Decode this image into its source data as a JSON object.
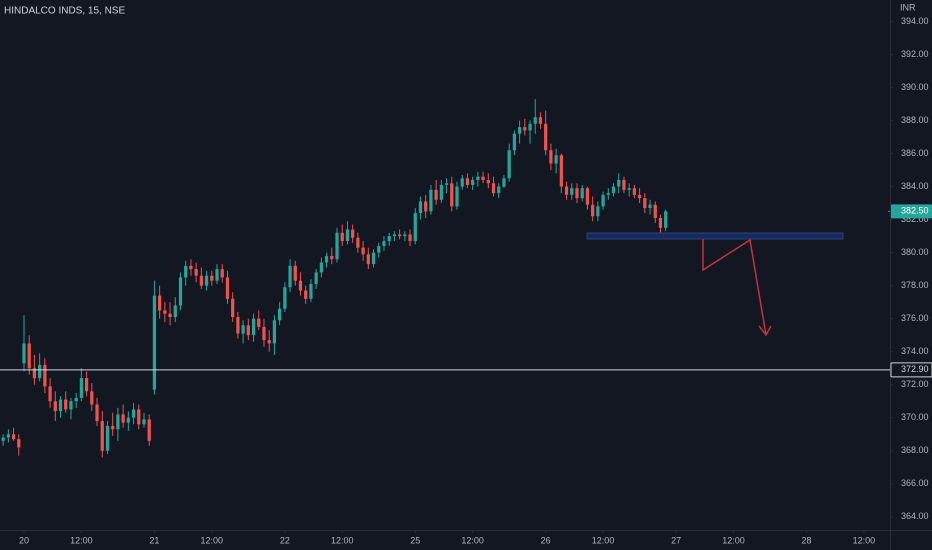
{
  "chart_data": {
    "type": "candlestick",
    "title": "HINDALCO INDS, 15, NSE",
    "currency": "INR",
    "up_color": "#26a69a",
    "down_color": "#ef5350",
    "grid": false,
    "x": [
      -4,
      -3,
      -2,
      -1,
      0,
      1,
      2,
      3,
      4,
      5,
      6,
      7,
      8,
      9,
      10,
      11,
      12,
      13,
      14,
      15,
      16,
      17,
      18,
      19,
      20,
      21,
      22,
      23,
      24,
      25,
      26,
      27,
      28,
      29,
      30,
      31,
      32,
      33,
      34,
      35,
      36,
      37,
      38,
      39,
      40,
      41,
      42,
      43,
      44,
      45,
      46,
      47,
      48,
      49,
      50,
      51,
      52,
      53,
      54,
      55,
      56,
      57,
      58,
      59,
      60,
      61,
      62,
      63,
      64,
      65,
      66,
      67,
      68,
      69,
      70,
      71,
      72,
      73,
      74,
      75,
      76,
      77,
      78,
      79,
      80,
      81,
      82,
      83,
      84,
      85,
      86,
      87,
      88,
      89,
      90,
      91,
      92,
      93,
      94,
      95,
      96,
      97,
      98,
      99,
      100,
      101,
      102,
      103,
      104,
      105,
      106,
      107,
      108,
      109,
      110,
      111,
      112,
      113,
      114,
      115,
      116,
      117,
      118,
      119,
      120,
      121,
      122,
      123
    ],
    "open": [
      368.6,
      368.8,
      369.0,
      368.7,
      373.3,
      374.5,
      373.0,
      372.4,
      373.2,
      371.9,
      371.0,
      370.4,
      371.1,
      370.5,
      371.0,
      371.2,
      372.4,
      371.6,
      370.8,
      369.8,
      368.0,
      369.5,
      369.3,
      370.2,
      369.7,
      370.0,
      370.5,
      369.6,
      369.9,
      371.7,
      377.4,
      376.5,
      376.3,
      376.1,
      376.8,
      378.5,
      379.2,
      379.0,
      378.6,
      378.0,
      378.6,
      378.3,
      379.0,
      378.5,
      377.2,
      376.1,
      375.1,
      375.6,
      375.0,
      376.0,
      375.5,
      374.7,
      374.5,
      375.9,
      376.6,
      377.9,
      379.2,
      378.3,
      377.7,
      377.2,
      378.1,
      378.8,
      379.4,
      379.8,
      379.6,
      381.2,
      380.7,
      381.4,
      380.9,
      380.3,
      379.9,
      379.3,
      380.0,
      380.4,
      380.7,
      381.0,
      381.1,
      381.0,
      381.1,
      380.7,
      382.4,
      383.1,
      382.5,
      383.8,
      383.2,
      384.1,
      384.2,
      382.8,
      384.0,
      384.5,
      384.1,
      384.4,
      384.6,
      384.4,
      384.2,
      383.6,
      384.0,
      384.5,
      386.2,
      387.2,
      387.6,
      387.4,
      387.8,
      388.2,
      387.8,
      386.2,
      385.4,
      385.9,
      384.0,
      383.5,
      383.9,
      383.3,
      383.9,
      382.9,
      382.2,
      382.8,
      383.5,
      383.6,
      384.0,
      384.4,
      383.8,
      383.9,
      383.5,
      383.3,
      382.7,
      382.9,
      382.1,
      381.5
    ],
    "high": [
      369.0,
      369.3,
      369.4,
      369.0,
      376.2,
      375.0,
      373.8,
      373.9,
      373.6,
      372.4,
      371.6,
      371.3,
      371.6,
      371.2,
      371.5,
      373.0,
      372.8,
      372.1,
      371.2,
      370.4,
      369.8,
      370.3,
      370.6,
      370.8,
      370.4,
      370.9,
      370.8,
      370.3,
      370.2,
      378.3,
      378.0,
      377.0,
      377.0,
      377.3,
      378.8,
      379.5,
      379.6,
      379.4,
      379.1,
      378.9,
      378.9,
      379.3,
      379.3,
      378.9,
      377.6,
      376.4,
      375.9,
      376.0,
      376.3,
      376.5,
      376.0,
      375.3,
      376.2,
      377.0,
      378.2,
      379.6,
      379.5,
      378.8,
      378.0,
      378.4,
      379.0,
      379.7,
      380.0,
      380.3,
      381.5,
      381.7,
      381.9,
      381.7,
      381.2,
      380.7,
      380.3,
      380.2,
      380.6,
      381.0,
      381.2,
      381.3,
      381.4,
      381.3,
      381.4,
      382.7,
      383.4,
      383.5,
      384.1,
      384.4,
      384.4,
      384.5,
      384.6,
      384.3,
      384.7,
      384.8,
      384.6,
      384.9,
      384.9,
      384.8,
      384.6,
      384.2,
      384.7,
      386.6,
      387.4,
      388.0,
      388.1,
      388.0,
      389.3,
      388.5,
      388.6,
      386.6,
      386.3,
      386.0,
      384.3,
      384.2,
      384.2,
      384.1,
      384.0,
      383.4,
      383.1,
      383.7,
      383.9,
      384.2,
      384.8,
      384.6,
      384.2,
      384.1,
      383.9,
      383.6,
      383.2,
      383.1,
      382.3,
      382.6
    ],
    "low": [
      368.3,
      368.5,
      368.6,
      367.7,
      372.8,
      372.6,
      372.0,
      372.2,
      371.5,
      370.6,
      369.8,
      370.0,
      370.3,
      369.9,
      370.6,
      371.0,
      371.3,
      370.4,
      369.5,
      367.6,
      367.8,
      368.9,
      368.6,
      369.4,
      369.2,
      369.6,
      369.3,
      369.4,
      368.3,
      371.4,
      376.0,
      375.8,
      375.6,
      375.8,
      376.5,
      378.0,
      378.6,
      378.2,
      377.8,
      377.7,
      378.0,
      378.1,
      378.2,
      376.9,
      375.8,
      374.8,
      374.5,
      374.7,
      374.6,
      375.3,
      374.3,
      374.0,
      373.8,
      375.6,
      376.4,
      377.6,
      378.0,
      377.4,
      376.9,
      377.0,
      377.8,
      378.5,
      379.1,
      379.3,
      379.4,
      380.4,
      380.5,
      380.6,
      380.0,
      379.5,
      379.0,
      379.1,
      379.7,
      380.1,
      380.4,
      380.7,
      380.8,
      380.7,
      380.4,
      380.5,
      382.0,
      382.1,
      382.3,
      382.9,
      383.0,
      383.6,
      382.5,
      382.6,
      383.8,
      383.9,
      383.8,
      384.0,
      384.2,
      383.9,
      383.4,
      383.3,
      383.9,
      384.3,
      385.9,
      386.6,
      387.1,
      386.6,
      387.2,
      387.5,
      385.9,
      385.0,
      384.8,
      383.6,
      383.2,
      383.2,
      383.0,
      383.1,
      382.6,
      381.9,
      381.9,
      382.6,
      383.2,
      383.4,
      383.6,
      383.6,
      383.4,
      383.3,
      383.0,
      382.4,
      382.3,
      381.8,
      381.2,
      381.3
    ],
    "close": [
      368.8,
      369.0,
      368.7,
      368.2,
      374.5,
      373.0,
      372.4,
      373.2,
      371.9,
      371.0,
      370.4,
      371.1,
      370.5,
      371.0,
      371.2,
      372.4,
      371.6,
      370.8,
      369.8,
      368.0,
      369.5,
      369.3,
      370.2,
      369.7,
      370.0,
      370.5,
      369.6,
      369.9,
      368.6,
      377.4,
      376.5,
      376.3,
      376.1,
      376.8,
      378.5,
      379.2,
      379.0,
      378.6,
      378.0,
      378.6,
      378.3,
      379.0,
      378.5,
      377.2,
      376.1,
      375.1,
      375.6,
      375.0,
      376.0,
      375.5,
      374.7,
      374.5,
      375.9,
      376.6,
      377.9,
      379.2,
      378.3,
      377.7,
      377.2,
      378.1,
      378.8,
      379.4,
      379.8,
      379.6,
      381.2,
      380.7,
      381.4,
      380.9,
      380.3,
      379.9,
      379.3,
      380.0,
      380.4,
      380.7,
      381.0,
      381.1,
      381.0,
      381.1,
      380.7,
      382.4,
      383.1,
      382.5,
      383.8,
      383.2,
      384.1,
      384.2,
      382.8,
      384.0,
      384.5,
      384.1,
      384.4,
      384.6,
      384.4,
      384.2,
      383.6,
      384.0,
      384.5,
      386.2,
      387.2,
      387.6,
      387.4,
      387.8,
      388.2,
      387.8,
      386.2,
      385.4,
      385.9,
      384.0,
      383.5,
      383.9,
      383.3,
      383.9,
      382.9,
      382.2,
      382.8,
      383.5,
      383.6,
      384.0,
      384.4,
      383.8,
      383.9,
      383.5,
      383.3,
      382.7,
      382.9,
      382.1,
      381.5,
      382.5
    ],
    "xlim": [
      -4.6,
      166
    ],
    "ylim": [
      363.2,
      395.3
    ],
    "xticks": [
      {
        "value": 0,
        "label": "20"
      },
      {
        "value": 11,
        "label": "12:00"
      },
      {
        "value": 25,
        "label": "21"
      },
      {
        "value": 36,
        "label": "12:00"
      },
      {
        "value": 50,
        "label": "22"
      },
      {
        "value": 61,
        "label": "12:00"
      },
      {
        "value": 75,
        "label": "25"
      },
      {
        "value": 86,
        "label": "12:00"
      },
      {
        "value": 100,
        "label": "26"
      },
      {
        "value": 111,
        "label": "12:00"
      },
      {
        "value": 125,
        "label": "27"
      },
      {
        "value": 136,
        "label": "12:00"
      },
      {
        "value": 150,
        "label": "28"
      },
      {
        "value": 161,
        "label": "12:00"
      }
    ],
    "yticks": [
      {
        "value": 364,
        "label": "364.00"
      },
      {
        "value": 366,
        "label": "366.00"
      },
      {
        "value": 368,
        "label": "368.00"
      },
      {
        "value": 370,
        "label": "370.00"
      },
      {
        "value": 372,
        "label": "372.00"
      },
      {
        "value": 374,
        "label": "374.00"
      },
      {
        "value": 376,
        "label": "376.00"
      },
      {
        "value": 378,
        "label": "378.00"
      },
      {
        "value": 380,
        "label": "380.00"
      },
      {
        "value": 382,
        "label": "382.00"
      },
      {
        "value": 384,
        "label": "384.00"
      },
      {
        "value": 386,
        "label": "386.00"
      },
      {
        "value": 388,
        "label": "388.00"
      },
      {
        "value": 390,
        "label": "390.00"
      },
      {
        "value": 392,
        "label": "392.00"
      },
      {
        "value": 394,
        "label": "394.00"
      }
    ],
    "last_price": {
      "value": 382.5,
      "label": "382.50",
      "color": "#26a69a"
    },
    "hline": {
      "value": 372.9,
      "label": "372.90",
      "color": "#d1d4dc"
    }
  }
}
